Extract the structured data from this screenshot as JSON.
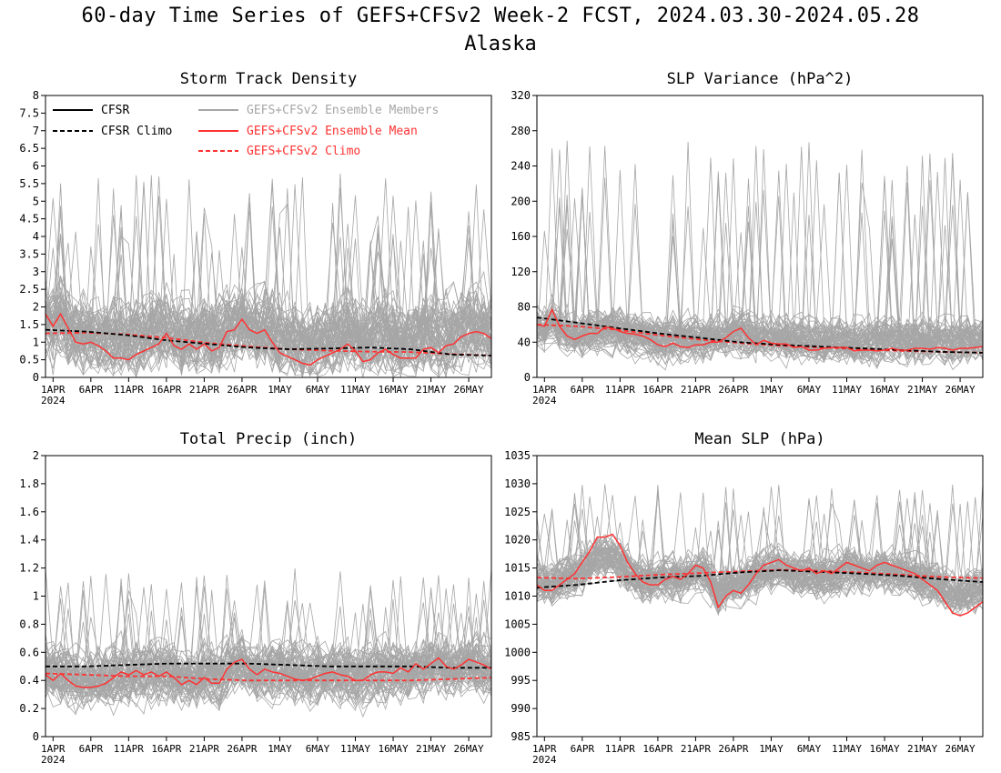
{
  "header": {
    "title": "60-day Time Series of GEFS+CFSv2 Week-2 FCST, 2024.03.30-2024.05.28",
    "subtitle": "Alaska"
  },
  "colors": {
    "cfsr": "#000000",
    "members": "#a6a6a6",
    "mean": "#ff3333",
    "climo": "#ff3333"
  },
  "legend": {
    "cfsr": "CFSR",
    "cfsr_climo": "CFSR Climo",
    "members": "GEFS+CFSv2 Ensemble Members",
    "mean": "GEFS+CFSv2 Ensemble Mean",
    "climo": "GEFS+CFSv2 Climo"
  },
  "x_axis": {
    "tick_labels": [
      "1APR",
      "6APR",
      "11APR",
      "16APR",
      "21APR",
      "26APR",
      "1MAY",
      "6MAY",
      "11MAY",
      "16MAY",
      "21MAY",
      "26MAY"
    ],
    "tick_days": [
      2,
      7,
      12,
      17,
      22,
      27,
      32,
      37,
      42,
      47,
      52,
      57
    ],
    "year_label": "2024",
    "days": 60
  },
  "chart_data": [
    {
      "type": "line",
      "title": "Storm Track Density",
      "ylim": [
        0,
        8
      ],
      "yticks": [
        "0",
        "0.5",
        "1",
        "1.5",
        "2",
        "2.5",
        "3",
        "3.5",
        "4",
        "4.5",
        "5",
        "5.5",
        "6",
        "6.5",
        "7",
        "7.5",
        "8"
      ],
      "ytick_values": [
        0,
        0.5,
        1,
        1.5,
        2,
        2.5,
        3,
        3.5,
        4,
        4.5,
        5,
        5.5,
        6,
        6.5,
        7,
        7.5,
        8
      ],
      "legend_shown": true,
      "members_band": {
        "center": 1.4,
        "spread": 1.3,
        "peak": 5.8
      },
      "series": [
        {
          "name": "GEFS+CFSv2 Ensemble Mean",
          "values": [
            1.8,
            1.45,
            1.8,
            1.4,
            1.0,
            0.95,
            1.0,
            0.9,
            0.75,
            0.55,
            0.55,
            0.5,
            0.65,
            0.75,
            0.85,
            0.95,
            1.25,
            0.9,
            0.8,
            0.95,
            0.8,
            0.95,
            0.75,
            0.85,
            1.3,
            1.35,
            1.65,
            1.35,
            1.25,
            1.35,
            1.0,
            0.7,
            0.6,
            0.5,
            0.4,
            0.35,
            0.5,
            0.6,
            0.7,
            0.8,
            0.95,
            0.75,
            0.45,
            0.5,
            0.7,
            0.8,
            0.65,
            0.55,
            0.55,
            0.55,
            0.8,
            0.85,
            0.7,
            0.9,
            0.95,
            1.15,
            1.25,
            1.3,
            1.25,
            1.1
          ]
        },
        {
          "name": "CFSR Climo",
          "values": [
            1.35,
            1.3,
            1.2,
            1.05,
            0.95,
            0.85,
            0.8,
            0.82,
            0.85,
            0.8,
            0.65,
            0.62
          ]
        },
        {
          "name": "GEFS+CFSv2 Climo",
          "values": [
            1.25,
            1.27,
            1.22,
            1.12,
            0.98,
            0.88,
            0.8,
            0.76,
            0.73,
            0.72,
            0.66,
            0.62
          ]
        }
      ]
    },
    {
      "type": "line",
      "title": "SLP Variance (hPa^2)",
      "ylim": [
        0,
        320
      ],
      "yticks": [
        "0",
        "40",
        "80",
        "120",
        "160",
        "200",
        "240",
        "280",
        "320"
      ],
      "ytick_values": [
        0,
        40,
        80,
        120,
        160,
        200,
        240,
        280,
        320
      ],
      "legend_shown": false,
      "members_band": {
        "center": 50,
        "spread": 30,
        "peak": 270
      },
      "series": [
        {
          "name": "GEFS+CFSv2 Ensemble Mean",
          "values": [
            60,
            58,
            77,
            58,
            47,
            43,
            47,
            50,
            50,
            57,
            56,
            52,
            50,
            49,
            47,
            43,
            37,
            35,
            39,
            35,
            34,
            37,
            37,
            40,
            40,
            45,
            52,
            56,
            45,
            37,
            42,
            39,
            38,
            38,
            34,
            35,
            31,
            31,
            33,
            34,
            34,
            34,
            30,
            31,
            31,
            30,
            31,
            33,
            31,
            31,
            33,
            33,
            32,
            34,
            33,
            31,
            33,
            33,
            34,
            35
          ]
        },
        {
          "name": "CFSR Climo",
          "values": [
            68,
            62,
            56,
            50,
            45,
            40,
            37,
            35,
            33,
            31,
            29,
            28
          ]
        },
        {
          "name": "GEFS+CFSv2 Climo",
          "values": [
            60,
            58,
            54,
            48,
            43,
            39,
            36,
            34,
            32,
            30,
            29,
            28
          ]
        }
      ]
    },
    {
      "type": "line",
      "title": "Total Precip (inch)",
      "ylim": [
        0,
        2
      ],
      "yticks": [
        "0",
        "0.2",
        "0.4",
        "0.6",
        "0.8",
        "1",
        "1.2",
        "1.4",
        "1.6",
        "1.8",
        "2"
      ],
      "ytick_values": [
        0,
        0.2,
        0.4,
        0.6,
        0.8,
        1,
        1.2,
        1.4,
        1.6,
        1.8,
        2
      ],
      "legend_shown": false,
      "members_band": {
        "center": 0.45,
        "spread": 0.25,
        "peak": 1.2
      },
      "series": [
        {
          "name": "GEFS+CFSv2 Ensemble Mean",
          "values": [
            0.44,
            0.4,
            0.45,
            0.4,
            0.36,
            0.35,
            0.35,
            0.36,
            0.38,
            0.42,
            0.46,
            0.44,
            0.47,
            0.44,
            0.46,
            0.43,
            0.46,
            0.42,
            0.37,
            0.4,
            0.37,
            0.42,
            0.38,
            0.38,
            0.48,
            0.53,
            0.55,
            0.48,
            0.44,
            0.48,
            0.46,
            0.45,
            0.43,
            0.41,
            0.4,
            0.41,
            0.43,
            0.45,
            0.46,
            0.44,
            0.43,
            0.4,
            0.4,
            0.44,
            0.46,
            0.46,
            0.45,
            0.49,
            0.46,
            0.52,
            0.48,
            0.52,
            0.56,
            0.5,
            0.48,
            0.51,
            0.55,
            0.53,
            0.51,
            0.48
          ]
        },
        {
          "name": "CFSR Climo",
          "values": [
            0.5,
            0.5,
            0.51,
            0.52,
            0.52,
            0.52,
            0.51,
            0.5,
            0.5,
            0.5,
            0.49,
            0.49
          ]
        },
        {
          "name": "GEFS+CFSv2 Climo",
          "values": [
            0.45,
            0.44,
            0.43,
            0.43,
            0.41,
            0.4,
            0.4,
            0.4,
            0.4,
            0.4,
            0.41,
            0.42
          ]
        }
      ]
    },
    {
      "type": "line",
      "title": "Mean SLP (hPa)",
      "ylim": [
        985,
        1035
      ],
      "yticks": [
        "985",
        "990",
        "995",
        "1000",
        "1005",
        "1010",
        "1015",
        "1020",
        "1025",
        "1030",
        "1035"
      ],
      "ytick_values": [
        985,
        990,
        995,
        1000,
        1005,
        1010,
        1015,
        1020,
        1025,
        1030,
        1035
      ],
      "legend_shown": false,
      "members_band": {
        "center": 1013,
        "spread": 4.5,
        "peak": 1030
      },
      "series": [
        {
          "name": "GEFS+CFSv2 Ensemble Mean",
          "values": [
            1012,
            1011,
            1011,
            1012,
            1013,
            1014,
            1016,
            1018,
            1020.5,
            1020.5,
            1021,
            1019,
            1016,
            1014,
            1012.5,
            1012,
            1012,
            1013,
            1013.5,
            1013,
            1014,
            1015.5,
            1015,
            1012.5,
            1008,
            1010,
            1011,
            1010.5,
            1012,
            1014,
            1015.5,
            1016,
            1016.5,
            1015.5,
            1015,
            1014.5,
            1015,
            1014,
            1014.5,
            1014,
            1015,
            1016,
            1015.5,
            1015,
            1014.5,
            1015.5,
            1016,
            1015.5,
            1015,
            1014.5,
            1014,
            1013,
            1012,
            1011,
            1009,
            1007,
            1006.5,
            1007,
            1008,
            1009
          ]
        },
        {
          "name": "CFSR Climo",
          "values": [
            1011.5,
            1012,
            1012.8,
            1013.3,
            1013.6,
            1014.2,
            1014.6,
            1014.3,
            1014,
            1013.6,
            1013,
            1012.5
          ]
        },
        {
          "name": "GEFS+CFSv2 Climo",
          "values": [
            1013.3,
            1013.1,
            1013.4,
            1013.8,
            1014.1,
            1014.4,
            1014.7,
            1014.5,
            1014.2,
            1013.8,
            1013.4,
            1013.2
          ]
        }
      ]
    }
  ]
}
